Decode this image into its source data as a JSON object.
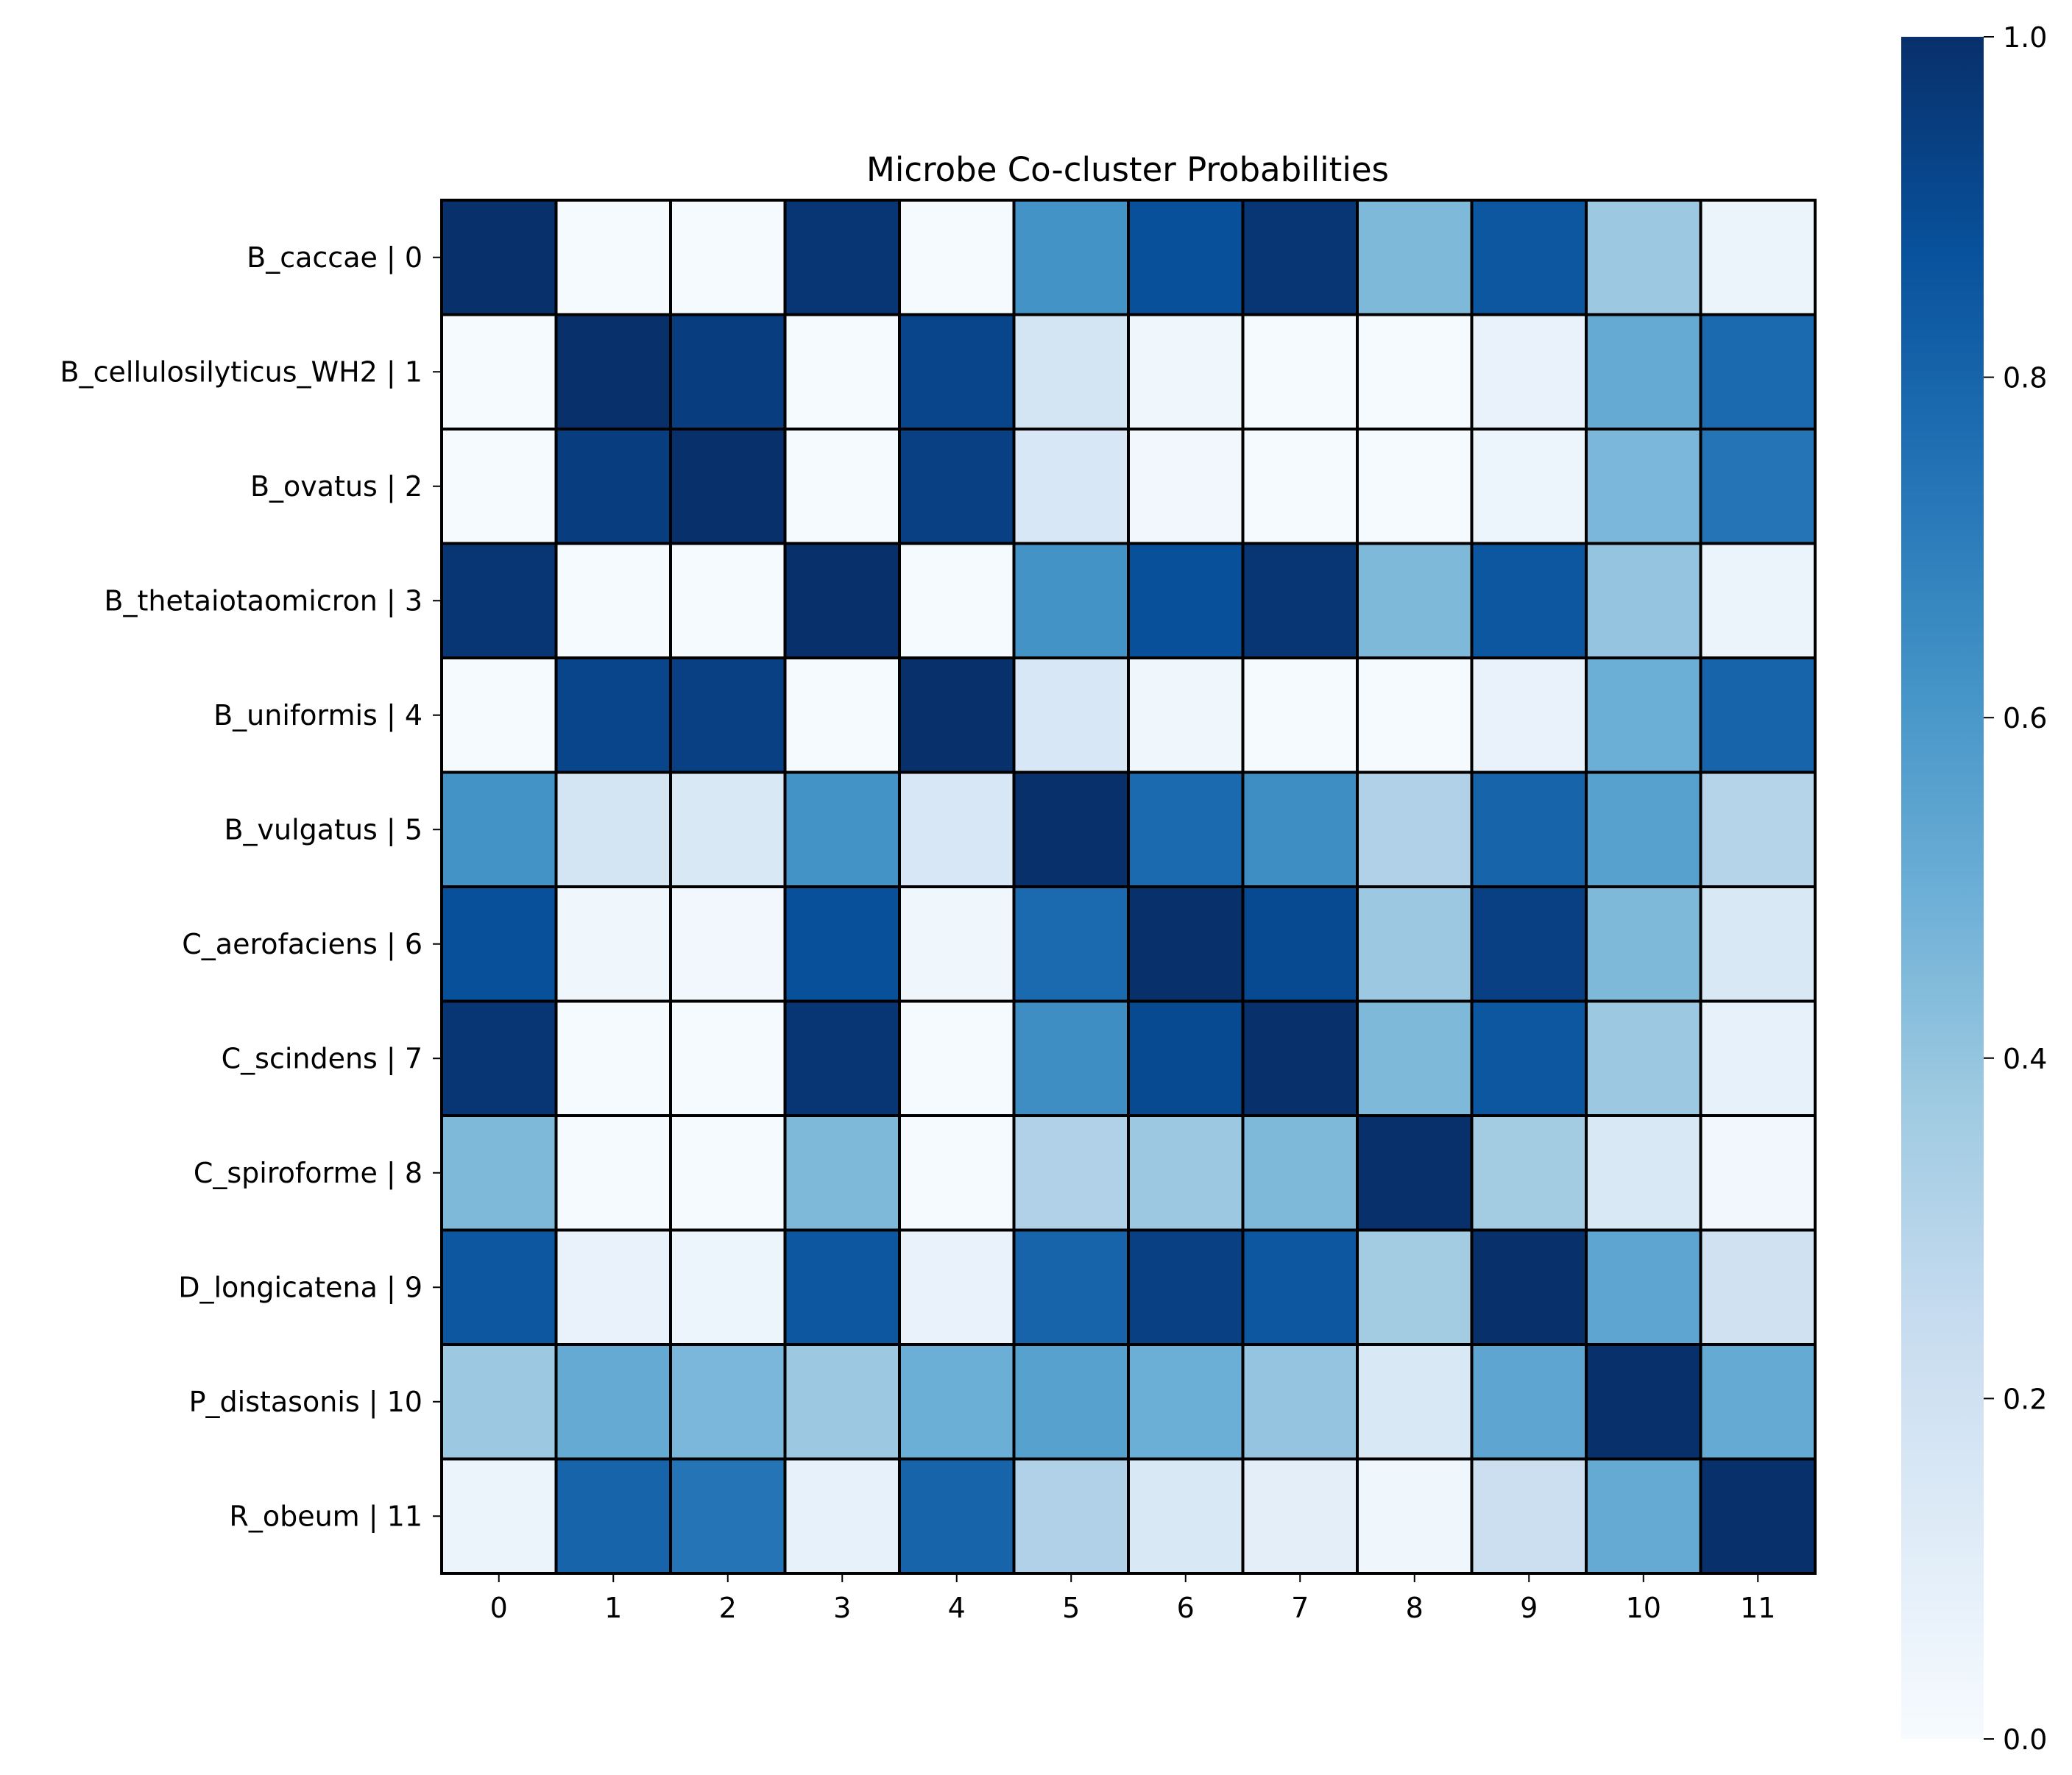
{
  "chart_data": {
    "type": "heatmap",
    "title": "Microbe Co-cluster Probabilities",
    "xlabel": "",
    "ylabel": "",
    "row_labels": [
      "B_caccae | 0",
      "B_cellulosilyticus_WH2 | 1",
      "B_ovatus | 2",
      "B_thetaiotaomicron | 3",
      "B_uniformis | 4",
      "B_vulgatus | 5",
      "C_aerofaciens | 6",
      "C_scindens | 7",
      "C_spiroforme | 8",
      "D_longicatena | 9",
      "P_distasonis | 10",
      "R_obeum | 11"
    ],
    "col_labels": [
      "0",
      "1",
      "2",
      "3",
      "4",
      "5",
      "6",
      "7",
      "8",
      "9",
      "10",
      "11"
    ],
    "values": [
      [
        1.0,
        0.01,
        0.01,
        0.98,
        0.01,
        0.62,
        0.88,
        0.98,
        0.45,
        0.85,
        0.38,
        0.06
      ],
      [
        0.01,
        1.0,
        0.95,
        0.01,
        0.92,
        0.18,
        0.04,
        0.01,
        0.01,
        0.07,
        0.52,
        0.78
      ],
      [
        0.01,
        0.95,
        1.0,
        0.01,
        0.94,
        0.16,
        0.03,
        0.01,
        0.01,
        0.05,
        0.46,
        0.74
      ],
      [
        0.98,
        0.01,
        0.01,
        1.0,
        0.01,
        0.62,
        0.88,
        0.98,
        0.45,
        0.85,
        0.4,
        0.06
      ],
      [
        0.01,
        0.92,
        0.94,
        0.01,
        1.0,
        0.16,
        0.04,
        0.01,
        0.01,
        0.07,
        0.5,
        0.8
      ],
      [
        0.62,
        0.18,
        0.15,
        0.62,
        0.16,
        1.0,
        0.78,
        0.64,
        0.32,
        0.8,
        0.56,
        0.3
      ],
      [
        0.88,
        0.04,
        0.03,
        0.88,
        0.04,
        0.78,
        1.0,
        0.9,
        0.38,
        0.94,
        0.45,
        0.15
      ],
      [
        0.98,
        0.01,
        0.01,
        0.98,
        0.01,
        0.64,
        0.9,
        1.0,
        0.45,
        0.85,
        0.38,
        0.08
      ],
      [
        0.45,
        0.01,
        0.01,
        0.45,
        0.01,
        0.32,
        0.38,
        0.45,
        1.0,
        0.36,
        0.15,
        0.03
      ],
      [
        0.85,
        0.07,
        0.05,
        0.85,
        0.07,
        0.8,
        0.94,
        0.85,
        0.36,
        1.0,
        0.54,
        0.2
      ],
      [
        0.38,
        0.52,
        0.46,
        0.38,
        0.5,
        0.56,
        0.5,
        0.4,
        0.15,
        0.54,
        1.0,
        0.52
      ],
      [
        0.06,
        0.8,
        0.74,
        0.08,
        0.8,
        0.32,
        0.15,
        0.1,
        0.04,
        0.22,
        0.52,
        1.0
      ]
    ],
    "colormap": "Blues",
    "vmin": 0,
    "vmax": 1,
    "colorbar": {
      "ticks": [
        0.0,
        0.2,
        0.4,
        0.6,
        0.8,
        1.0
      ],
      "tick_labels": [
        "0.0",
        "0.2",
        "0.4",
        "0.6",
        "0.8",
        "1.0"
      ],
      "placement": "right"
    },
    "cell_border_color": "#000000"
  }
}
